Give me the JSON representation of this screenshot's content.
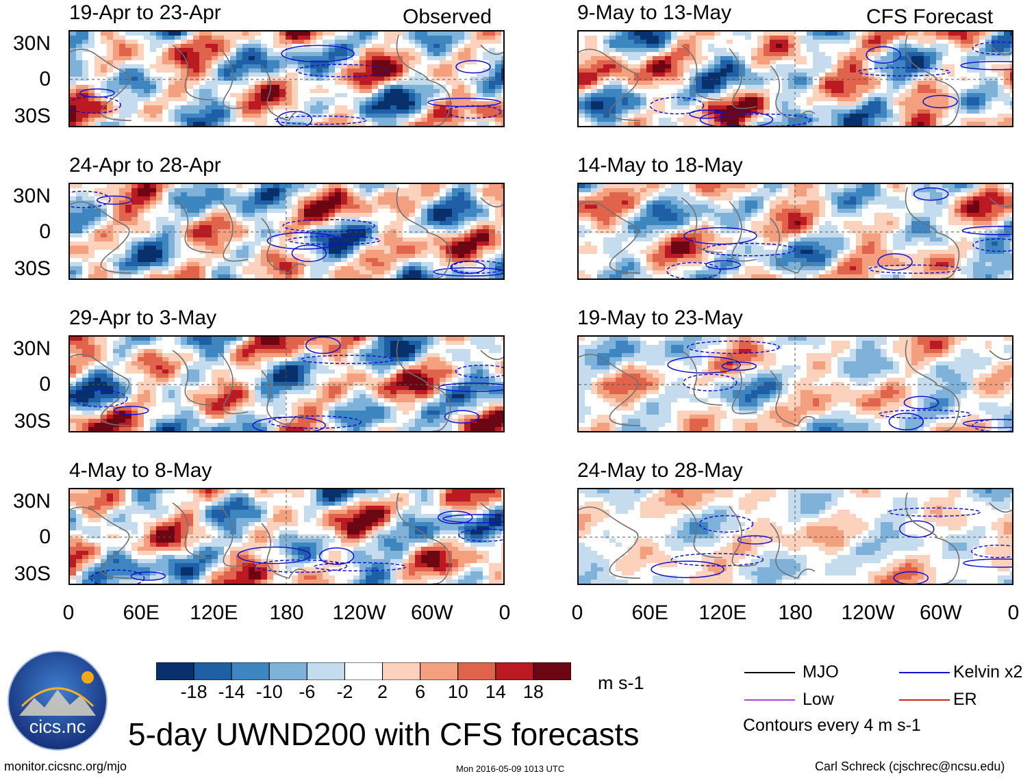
{
  "columns": {
    "observed": {
      "label": "Observed",
      "panels": [
        "19-Apr to 23-Apr",
        "24-Apr to 28-Apr",
        "29-Apr to 3-May",
        "4-May to 8-May"
      ]
    },
    "forecast": {
      "label": "CFS Forecast",
      "panels": [
        "9-May to 13-May",
        "14-May to 18-May",
        "19-May to 23-May",
        "24-May to 28-May"
      ]
    }
  },
  "latitude_ticks": [
    "30N",
    "0",
    "30S"
  ],
  "longitude_ticks": [
    "0",
    "60E",
    "120E",
    "180",
    "120W",
    "60W",
    "0"
  ],
  "chart_data": {
    "type": "heatmap",
    "title": "5-day UWND200 with CFS forecasts",
    "variable": "200 hPa zonal wind anomaly",
    "units": "m s-1",
    "xaxis": [
      "0",
      "60E",
      "120E",
      "180",
      "120W",
      "60W",
      "0"
    ],
    "yaxis": [
      "30N",
      "0",
      "30S"
    ],
    "colorbar": {
      "levels": [
        "-18",
        "-14",
        "-10",
        "-6",
        "-2",
        "2",
        "6",
        "10",
        "14",
        "18"
      ],
      "colors": [
        "#08306b",
        "#1f5fa6",
        "#3e86c0",
        "#7fb2d8",
        "#c4dced",
        "#ffffff",
        "#fcd2bd",
        "#f4a07f",
        "#e0634b",
        "#bb1a22",
        "#6b0612"
      ]
    },
    "contour_note": "Contours every 4 m s-1",
    "legend": [
      {
        "name": "MJO",
        "color": "#000000"
      },
      {
        "name": "Kelvin x2",
        "color": "#1010d0"
      },
      {
        "name": "Low",
        "color": "#b040d0"
      },
      {
        "name": "ER",
        "color": "#d02010"
      }
    ]
  },
  "logo": {
    "text": "cics.nc"
  },
  "footer": {
    "url": "monitor.cicsnc.org/mjo",
    "timestamp": "Mon 2016-05-09 1013 UTC",
    "author": "Carl Schreck (cjschrec@ncsu.edu)"
  }
}
